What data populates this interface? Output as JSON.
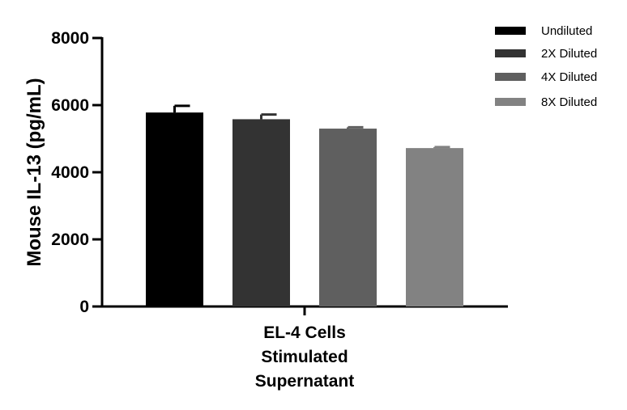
{
  "chart_data": {
    "type": "bar",
    "categories": [
      "EL-4 Cells Stimulated Supernatant"
    ],
    "category_label_lines": [
      "EL-4 Cells",
      "Stimulated",
      "Supernatant"
    ],
    "ylabel": "Mouse IL-13 (pg/mL)",
    "xlabel": "",
    "ylim": [
      0,
      8000
    ],
    "yticks": [
      0,
      2000,
      4000,
      6000,
      8000
    ],
    "ytick_labels": [
      "0",
      "2000",
      "4000",
      "6000",
      "8000"
    ],
    "grid": false,
    "legend_position": "top-right",
    "series": [
      {
        "name": "Undiluted",
        "values": [
          5780
        ],
        "error": [
          200
        ],
        "color": "#000000"
      },
      {
        "name": "2X Diluted",
        "values": [
          5580
        ],
        "error": [
          140
        ],
        "color": "#333333"
      },
      {
        "name": "4X Diluted",
        "values": [
          5300
        ],
        "error": [
          40
        ],
        "color": "#5f5f5f"
      },
      {
        "name": "8X Diluted",
        "values": [
          4720
        ],
        "error": [
          30
        ],
        "color": "#828282"
      }
    ]
  }
}
